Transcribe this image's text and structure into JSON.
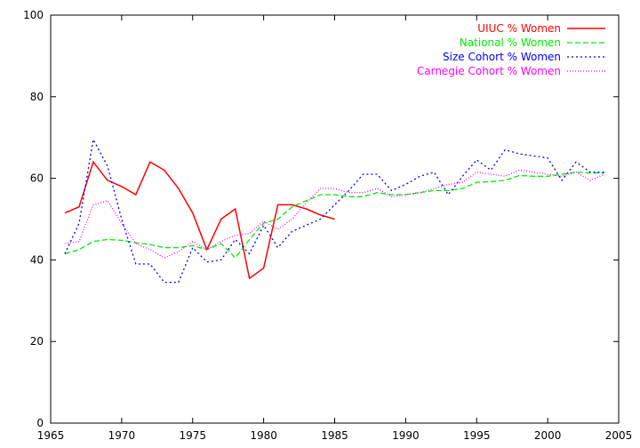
{
  "chart_data": {
    "type": "line",
    "title": "",
    "xlabel": "",
    "ylabel": "",
    "xlim": [
      1965,
      2005
    ],
    "ylim": [
      0,
      100
    ],
    "xticks": [
      1965,
      1970,
      1975,
      1980,
      1985,
      1990,
      1995,
      2000,
      2005
    ],
    "yticks": [
      0,
      20,
      40,
      60,
      80,
      100
    ],
    "grid": false,
    "legend_position": "top-right",
    "series": [
      {
        "name": "UIUC % Women",
        "color": "#ff0000",
        "dash": "solid",
        "x": [
          1966,
          1967,
          1968,
          1969,
          1970,
          1971,
          1972,
          1973,
          1974,
          1975,
          1976,
          1977,
          1978,
          1979,
          1980,
          1981,
          1982,
          1983,
          1984,
          1985
        ],
        "y": [
          51.5,
          53,
          64,
          59.5,
          58,
          56,
          64,
          62,
          57.5,
          51.5,
          42.5,
          50,
          52.5,
          35.5,
          38,
          53.5,
          53.5,
          52.5,
          51,
          50
        ]
      },
      {
        "name": "National % Women",
        "color": "#00ee00",
        "dash": "dashed",
        "x": [
          1966,
          1967,
          1968,
          1969,
          1970,
          1971,
          1972,
          1973,
          1974,
          1975,
          1976,
          1977,
          1978,
          1979,
          1980,
          1981,
          1982,
          1983,
          1984,
          1985,
          1986,
          1987,
          1988,
          1989,
          1990,
          1991,
          1992,
          1993,
          1994,
          1995,
          1996,
          1997,
          1998,
          1999,
          2000,
          2001,
          2002,
          2003,
          2004
        ],
        "y": [
          41.5,
          42.5,
          44.5,
          45,
          44.8,
          44.2,
          43.8,
          43,
          43,
          43.5,
          42.5,
          44,
          40.5,
          45,
          49,
          50,
          53,
          54.5,
          56,
          56,
          55.5,
          55.5,
          56.5,
          56,
          56,
          56.5,
          57,
          57,
          57.5,
          59,
          59.2,
          59.5,
          60.7,
          60.5,
          60.5,
          61,
          61.5,
          61.3,
          61.3
        ]
      },
      {
        "name": "Size Cohort % Women",
        "color": "#0000ff",
        "dash": "dotted",
        "x": [
          1966,
          1967,
          1968,
          1969,
          1970,
          1971,
          1972,
          1973,
          1974,
          1975,
          1976,
          1977,
          1978,
          1979,
          1980,
          1981,
          1982,
          1983,
          1984,
          1985,
          1986,
          1987,
          1988,
          1989,
          1990,
          1991,
          1992,
          1993,
          1994,
          1995,
          1996,
          1997,
          1998,
          1999,
          2000,
          2001,
          2002,
          2003,
          2004
        ],
        "y": [
          41.5,
          49,
          69.5,
          63,
          50,
          39,
          39,
          34.5,
          34.5,
          43,
          39.5,
          40,
          45,
          41.5,
          48.5,
          43,
          47,
          48.5,
          50,
          53.5,
          57,
          61,
          61,
          57,
          58.5,
          60.5,
          61.5,
          56,
          60.5,
          64.5,
          62,
          67,
          66,
          65.5,
          65,
          59.5,
          64,
          61.5,
          61.5
        ]
      },
      {
        "name": "Carnegie Cohort % Women",
        "color": "#ff00ff",
        "dash": "finedot",
        "x": [
          1966,
          1967,
          1968,
          1969,
          1970,
          1971,
          1972,
          1973,
          1974,
          1975,
          1976,
          1977,
          1978,
          1979,
          1980,
          1981,
          1982,
          1983,
          1984,
          1985,
          1986,
          1987,
          1988,
          1989,
          1990,
          1991,
          1992,
          1993,
          1994,
          1995,
          1996,
          1997,
          1998,
          1999,
          2000,
          2001,
          2002,
          2003,
          2004
        ],
        "y": [
          44,
          44.5,
          53.5,
          54.5,
          49,
          44,
          42.5,
          40.5,
          42,
          44.5,
          42.5,
          44.5,
          46,
          46.5,
          49.5,
          47.5,
          50,
          54,
          57.5,
          57.5,
          56.5,
          56.5,
          57.5,
          55.5,
          56,
          56.5,
          57.5,
          58.5,
          59,
          61.5,
          61,
          60.5,
          62,
          61.5,
          61,
          60.5,
          61.5,
          59.5,
          61
        ]
      }
    ]
  }
}
